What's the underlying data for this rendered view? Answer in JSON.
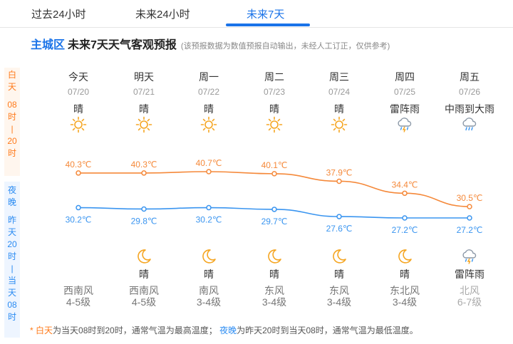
{
  "tabs": [
    {
      "label": "过去24小时",
      "active": false
    },
    {
      "label": "未来24小时",
      "active": false
    },
    {
      "label": "未来7天",
      "active": true
    }
  ],
  "header": {
    "district": "主城区",
    "title": "未来7天天气客观预报",
    "note": "(该预报数据为数值预报自动输出，未经人工订正，仅供参考)"
  },
  "side": {
    "day_label": [
      "白",
      "天",
      "08",
      "时",
      "|",
      "20",
      "时"
    ],
    "night_label": [
      "夜",
      "晚",
      "昨",
      "天",
      "20",
      "时",
      "|",
      "当",
      "天",
      "08",
      "时"
    ]
  },
  "days": [
    {
      "name": "今天",
      "date": "07/20",
      "day_weather": "晴",
      "day_icon": "sun-icon",
      "night_weather": "",
      "night_icon": "",
      "wind_dir": "西南风",
      "wind_level": "4-5级"
    },
    {
      "name": "明天",
      "date": "07/21",
      "day_weather": "晴",
      "day_icon": "sun-icon",
      "night_weather": "晴",
      "night_icon": "moon-icon",
      "wind_dir": "西南风",
      "wind_level": "4-5级"
    },
    {
      "name": "周一",
      "date": "07/22",
      "day_weather": "晴",
      "day_icon": "sun-icon",
      "night_weather": "晴",
      "night_icon": "moon-icon",
      "wind_dir": "南风",
      "wind_level": "3-4级"
    },
    {
      "name": "周二",
      "date": "07/23",
      "day_weather": "晴",
      "day_icon": "sun-icon",
      "night_weather": "晴",
      "night_icon": "moon-icon",
      "wind_dir": "东风",
      "wind_level": "3-4级"
    },
    {
      "name": "周三",
      "date": "07/24",
      "day_weather": "晴",
      "day_icon": "sun-icon",
      "night_weather": "晴",
      "night_icon": "moon-icon",
      "wind_dir": "东风",
      "wind_level": "3-4级"
    },
    {
      "name": "周四",
      "date": "07/25",
      "day_weather": "雷阵雨",
      "day_icon": "thunder-rain-icon",
      "night_weather": "晴",
      "night_icon": "moon-icon",
      "wind_dir": "东北风",
      "wind_level": "3-4级"
    },
    {
      "name": "周五",
      "date": "07/26",
      "day_weather": "中雨到大雨",
      "day_icon": "rain-icon",
      "night_weather": "雷阵雨",
      "night_icon": "thunder-rain-icon",
      "wind_dir": "北风",
      "wind_level": "6-7级"
    }
  ],
  "chart_data": {
    "type": "line",
    "categories": [
      "07/20",
      "07/21",
      "07/22",
      "07/23",
      "07/24",
      "07/25",
      "07/26"
    ],
    "series": [
      {
        "values": [
          40.3,
          40.3,
          40.7,
          40.1,
          37.9,
          34.4,
          30.5
        ],
        "labels": [
          "40.3℃",
          "40.3℃",
          "40.7℃",
          "40.1℃",
          "37.9℃",
          "34.4℃",
          "30.5℃"
        ],
        "color": "#f5893a"
      },
      {
        "values": [
          30.2,
          29.8,
          30.2,
          29.7,
          27.6,
          27.2,
          27.2
        ],
        "labels": [
          "30.2℃",
          "29.8℃",
          "30.2℃",
          "29.7℃",
          "27.6℃",
          "27.2℃",
          "27.2℃"
        ],
        "color": "#3a95f0"
      }
    ]
  },
  "footnote": {
    "star": "*",
    "day_word": "白天",
    "day_desc": "为当天08时到20时，通常气温为最高温度；",
    "night_word": "夜晚",
    "night_desc": "为昨天20时到当天08时，通常气温为最低温度。"
  },
  "colors": {
    "accent": "#1a73e8",
    "day": "#ff7a1a",
    "night": "#2a8bf2",
    "sun": "#f5a623"
  }
}
